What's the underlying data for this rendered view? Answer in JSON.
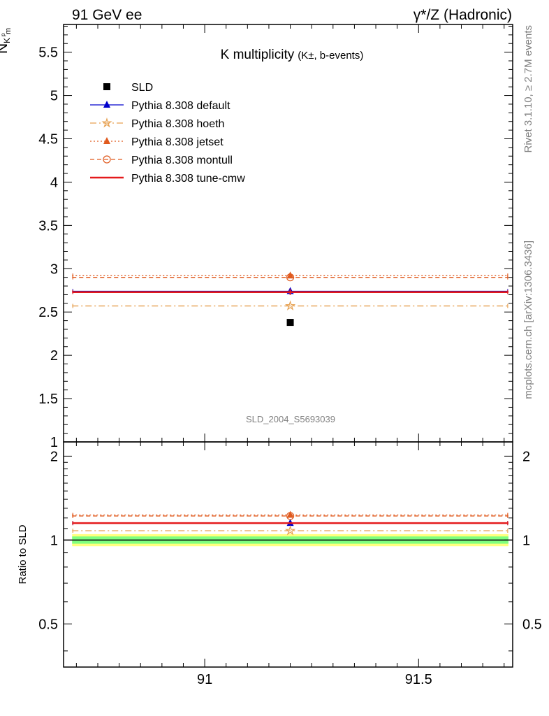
{
  "header": {
    "left": "91 GeV ee",
    "right": "γ*/Z (Hadronic)"
  },
  "side": {
    "rivet": "Rivet 3.1.10, ≥ 2.7M events",
    "mcplots": "mcplots.cern.ch [arXiv:1306.3436]"
  },
  "analysis_id": "SLD_2004_S5693039",
  "chart_data": [
    {
      "type": "scatter",
      "title": "K multiplicity",
      "title_suffix": "(K±, b-events)",
      "ylabel": "N_{K^{p}_{m}}",
      "xlim": [
        90.67,
        91.72
      ],
      "ylim": [
        1.0,
        5.82
      ],
      "yticks": [
        "1",
        "1.5",
        "2",
        "2.5",
        "3",
        "3.5",
        "4",
        "4.5",
        "5",
        "5.5"
      ],
      "x_bin": [
        90.69,
        91.71
      ],
      "x_center": 91.2,
      "series": [
        {
          "name": "SLD",
          "values": [
            2.38
          ],
          "color": "#000000",
          "marker": "square",
          "line": "none"
        },
        {
          "name": "Pythia 8.308 default",
          "values": [
            2.74
          ],
          "color": "#0000cc",
          "marker": "triangle",
          "line": "solid"
        },
        {
          "name": "Pythia 8.308 hoeth",
          "values": [
            2.57
          ],
          "color": "#e6a050",
          "marker": "star-open",
          "line": "dashdot"
        },
        {
          "name": "Pythia 8.308 jetset",
          "values": [
            2.92
          ],
          "color": "#e05a1e",
          "marker": "triangle",
          "line": "dotted"
        },
        {
          "name": "Pythia 8.308 montull",
          "values": [
            2.9
          ],
          "color": "#e05a1e",
          "marker": "circle-open",
          "line": "dashed"
        },
        {
          "name": "Pythia 8.308 tune-cmw",
          "values": [
            2.73
          ],
          "color": "#e41a1c",
          "marker": "none",
          "line": "thick"
        }
      ]
    },
    {
      "type": "scatter",
      "ylabel": "Ratio to SLD",
      "xlim": [
        90.67,
        91.72
      ],
      "ylim": [
        0.35,
        2.25
      ],
      "yticks": [
        "0.5",
        "1",
        "2"
      ],
      "xticks": [
        "91",
        "91.5"
      ],
      "band_inner": [
        0.97,
        1.03
      ],
      "band_outer": [
        0.95,
        1.05
      ],
      "series": [
        {
          "name": "Pythia 8.308 default",
          "values": [
            1.15
          ]
        },
        {
          "name": "Pythia 8.308 hoeth",
          "values": [
            1.08
          ]
        },
        {
          "name": "Pythia 8.308 jetset",
          "values": [
            1.23
          ]
        },
        {
          "name": "Pythia 8.308 montull",
          "values": [
            1.22
          ]
        },
        {
          "name": "Pythia 8.308 tune-cmw",
          "values": [
            1.15
          ]
        }
      ]
    }
  ]
}
